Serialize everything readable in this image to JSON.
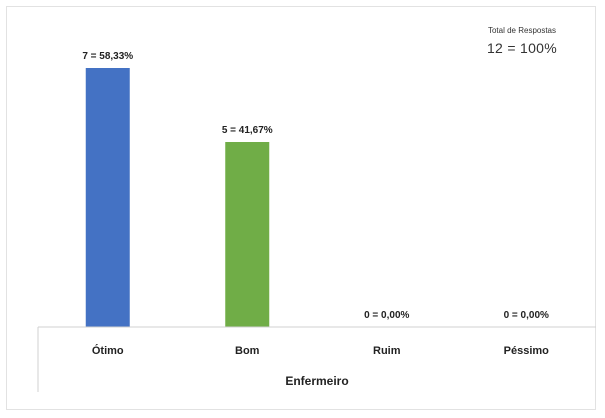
{
  "total": {
    "label": "Total de Respostas",
    "value": "12 = 100%"
  },
  "chart_data": {
    "type": "bar",
    "categories": [
      "Ótimo",
      "Bom",
      "Ruim",
      "Péssimo"
    ],
    "values": [
      7,
      5,
      0,
      0
    ],
    "data_labels": [
      "7 = 58,33%",
      "5 = 41,67%",
      "0 = 0,00%",
      "0 = 0,00%"
    ],
    "colors": [
      "#4472c4",
      "#70ad47",
      "#a5a5a5",
      "#ffc000"
    ],
    "xlabel": "Enfermeiro",
    "ylabel": "",
    "ylim": [
      0,
      7
    ],
    "grid": false,
    "legend": "none"
  }
}
